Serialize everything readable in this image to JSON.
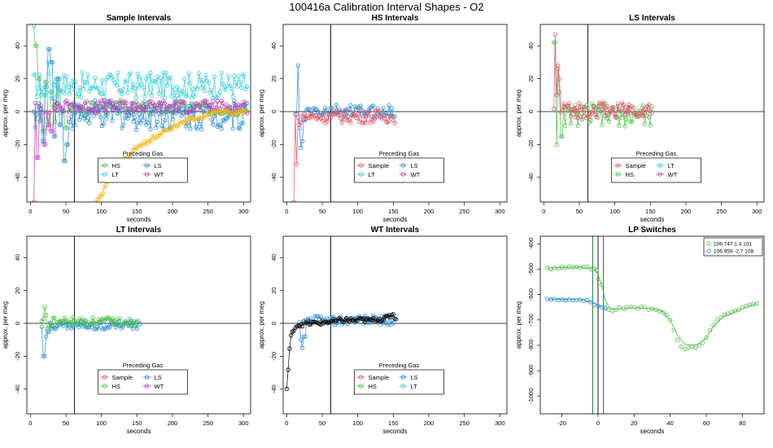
{
  "page_title": "100416a   Calibration Interval Shapes - O2",
  "colors": {
    "Sample": "#e8566b",
    "HS": "#4cbf4c",
    "LS": "#2a8fd4",
    "LT": "#3ccfd8",
    "WT": "#c040c0",
    "black": "#000000",
    "darkgreen": "#007a33"
  },
  "chart_data": [
    {
      "id": "sample",
      "type": "scatter",
      "title": "Sample Intervals",
      "xlabel": "seconds",
      "ylabel": "approx. per meg",
      "xlim": [
        -5,
        310
      ],
      "ylim": [
        -55,
        53
      ],
      "xticks": [
        0,
        50,
        100,
        150,
        200,
        250,
        300
      ],
      "yticks": [
        -40,
        -20,
        0,
        20,
        40
      ],
      "hline": 0,
      "vline": 62,
      "legend": {
        "title": "Preceding Gas",
        "position": "bottom-center",
        "entries": [
          "HS",
          "LS",
          "LT",
          "WT"
        ]
      },
      "series": [
        {
          "name": "HS",
          "xmax": 305,
          "level": 2,
          "noise": 4,
          "spike": [
            [
              5,
              52
            ],
            [
              8,
              40
            ],
            [
              12,
              20
            ],
            [
              15,
              -5
            ],
            [
              18,
              -12
            ],
            [
              22,
              18
            ],
            [
              26,
              -8
            ],
            [
              30,
              12
            ],
            [
              35,
              -6
            ],
            [
              40,
              20
            ],
            [
              45,
              0
            ],
            [
              50,
              -10
            ]
          ]
        },
        {
          "name": "LS",
          "xmax": 305,
          "level": -2,
          "noise": 9,
          "spike": [
            [
              18,
              -18
            ],
            [
              22,
              15
            ],
            [
              26,
              38
            ],
            [
              30,
              30
            ],
            [
              34,
              -15
            ],
            [
              38,
              20
            ],
            [
              42,
              -8
            ],
            [
              48,
              -30
            ],
            [
              52,
              -20
            ]
          ]
        },
        {
          "name": "LT",
          "xmax": 305,
          "level": 16,
          "noise": 8,
          "spike": [
            [
              20,
              10
            ],
            [
              25,
              30
            ],
            [
              30,
              8
            ],
            [
              35,
              18
            ],
            [
              45,
              12
            ]
          ]
        },
        {
          "name": "WT",
          "xmax": 305,
          "level": 3,
          "noise": 4,
          "spike": [
            [
              5,
              -55
            ],
            [
              10,
              -28
            ],
            [
              20,
              -20
            ],
            [
              25,
              -10
            ],
            [
              30,
              -12
            ],
            [
              35,
              6
            ]
          ]
        },
        {
          "name": "orange",
          "color": "#f0b820",
          "xmax": 305,
          "level": 0,
          "noise": 3,
          "curve": [
            [
              92,
              -55
            ],
            [
              100,
              -50
            ],
            [
              110,
              -42
            ],
            [
              120,
              -38
            ],
            [
              130,
              -30
            ],
            [
              140,
              -26
            ],
            [
              150,
              -22
            ],
            [
              160,
              -20
            ],
            [
              170,
              -17
            ],
            [
              180,
              -15
            ],
            [
              190,
              -12
            ],
            [
              200,
              -10
            ],
            [
              210,
              -7
            ],
            [
              220,
              -6
            ],
            [
              230,
              -4
            ],
            [
              240,
              -3
            ],
            [
              250,
              -2
            ],
            [
              260,
              -1
            ],
            [
              270,
              0
            ],
            [
              280,
              0
            ],
            [
              290,
              -1
            ],
            [
              300,
              0
            ]
          ]
        }
      ]
    },
    {
      "id": "hs",
      "type": "scatter",
      "title": "HS Intervals",
      "xlabel": "seconds",
      "ylabel": "approx. per meg",
      "xlim": [
        -5,
        310
      ],
      "ylim": [
        -55,
        53
      ],
      "xticks": [
        0,
        50,
        100,
        150,
        200,
        250,
        300
      ],
      "yticks": [
        -40,
        -20,
        0,
        20,
        40
      ],
      "hline": 0,
      "vline": 62,
      "legend": {
        "title": "Preceding Gas",
        "position": "bottom-center",
        "entries": [
          "Sample",
          "LS",
          "LT",
          "WT"
        ]
      },
      "series": [
        {
          "name": "LS",
          "xmin": 14,
          "xmax": 152,
          "level": 0,
          "noise": 4,
          "spike": [
            [
              16,
              28
            ],
            [
              18,
              -10
            ],
            [
              20,
              -22
            ],
            [
              22,
              -18
            ],
            [
              25,
              -5
            ]
          ]
        },
        {
          "name": "Sample",
          "xmin": 10,
          "xmax": 152,
          "level": -3,
          "noise": 4,
          "spike": [
            [
              10,
              -55
            ],
            [
              14,
              -32
            ],
            [
              18,
              -8
            ]
          ]
        }
      ]
    },
    {
      "id": "ls",
      "type": "scatter",
      "title": "LS Intervals",
      "xlabel": "seconds",
      "ylabel": "approx. per meg",
      "xlim": [
        -5,
        310
      ],
      "ylim": [
        -55,
        53
      ],
      "xticks": [
        0,
        50,
        100,
        150,
        200,
        250,
        300
      ],
      "yticks": [
        -40,
        -20,
        0,
        20,
        40
      ],
      "hline": 0,
      "vline": 62,
      "legend": {
        "title": "Preceding Gas",
        "position": "bottom-center",
        "entries": [
          "Sample",
          "LT",
          "HS",
          "WT"
        ]
      },
      "series": [
        {
          "name": "HS",
          "xmin": 14,
          "xmax": 152,
          "level": -2,
          "noise": 7,
          "spike": [
            [
              15,
              42
            ],
            [
              18,
              -20
            ],
            [
              20,
              26
            ],
            [
              22,
              12
            ],
            [
              25,
              -15
            ]
          ]
        },
        {
          "name": "Sample",
          "xmin": 14,
          "xmax": 152,
          "level": 1,
          "noise": 5,
          "spike": [
            [
              16,
              47
            ],
            [
              18,
              10
            ],
            [
              20,
              28
            ],
            [
              22,
              20
            ]
          ]
        }
      ]
    },
    {
      "id": "lt",
      "type": "scatter",
      "title": "LT Intervals",
      "xlabel": "seconds",
      "ylabel": "approx. per meg",
      "xlim": [
        -5,
        310
      ],
      "ylim": [
        -55,
        53
      ],
      "xticks": [
        0,
        50,
        100,
        150,
        200,
        250,
        300
      ],
      "yticks": [
        -40,
        -20,
        0,
        20,
        40
      ],
      "hline": 0,
      "vline": 62,
      "legend": {
        "title": "Preceding Gas",
        "position": "bottom-center",
        "entries": [
          "Sample",
          "LS",
          "HS",
          "WT"
        ]
      },
      "series": [
        {
          "name": "LS",
          "xmin": 16,
          "xmax": 155,
          "level": -1,
          "noise": 2.5,
          "spike": [
            [
              18,
              -20
            ],
            [
              20,
              -20
            ],
            [
              22,
              -8
            ],
            [
              25,
              -5
            ]
          ]
        },
        {
          "name": "HS",
          "xmin": 16,
          "xmax": 150,
          "level": 1,
          "noise": 2.5,
          "spike": [
            [
              20,
              10
            ],
            [
              22,
              5
            ],
            [
              25,
              -3
            ]
          ]
        }
      ]
    },
    {
      "id": "wt",
      "type": "scatter",
      "title": "WT Intervals",
      "xlabel": "seconds",
      "ylabel": "approx. per meg",
      "xlim": [
        -5,
        310
      ],
      "ylim": [
        -55,
        53
      ],
      "xticks": [
        0,
        50,
        100,
        150,
        200,
        250,
        300
      ],
      "yticks": [
        -40,
        -20,
        0,
        20,
        40
      ],
      "hline": 0,
      "vline": 62,
      "legend": {
        "title": "Preceding Gas",
        "position": "bottom-center",
        "entries": [
          "Sample",
          "LS",
          "HS",
          "LT"
        ]
      },
      "series": [
        {
          "name": "LS",
          "xmin": 18,
          "xmax": 150,
          "level": 2,
          "noise": 3,
          "spike": [
            [
              20,
              -10
            ],
            [
              22,
              -15
            ],
            [
              25,
              -8
            ]
          ]
        },
        {
          "name": "black",
          "color": "#000000",
          "xmin": 0,
          "xmax": 155,
          "level": 1,
          "noise": 3,
          "line": true,
          "curve": [
            [
              0,
              -40
            ],
            [
              5,
              -10
            ],
            [
              10,
              -3
            ],
            [
              15,
              -1
            ],
            [
              25,
              0
            ],
            [
              40,
              0
            ],
            [
              60,
              1
            ],
            [
              80,
              2
            ],
            [
              100,
              2
            ],
            [
              120,
              2
            ],
            [
              140,
              3
            ],
            [
              150,
              6
            ],
            [
              155,
              1
            ]
          ]
        }
      ]
    },
    {
      "id": "lp",
      "type": "scatter",
      "title": "LP Switches",
      "xlabel": "seconds",
      "ylabel": "approx. per meg",
      "xlim": [
        -32,
        92
      ],
      "ylim": [
        -1070,
        -370
      ],
      "xticks": [
        -20,
        0,
        20,
        40,
        60,
        80
      ],
      "yticks": [
        -1000,
        -900,
        -800,
        -700,
        -600,
        -500,
        -400
      ],
      "vline": 0,
      "vlines_green": [
        -3,
        3
      ],
      "legend": {
        "position": "top-right",
        "entries": [
          {
            "label": "106.747 1.4 101",
            "color": "HS"
          },
          {
            "label": "106.959 -2.7 108",
            "color": "LS"
          }
        ]
      },
      "series": [
        {
          "name": "HS",
          "points": [
            [
              -28,
              -495
            ],
            [
              -26,
              -500
            ],
            [
              -24,
              -495
            ],
            [
              -22,
              -498
            ],
            [
              -20,
              -492
            ],
            [
              -18,
              -495
            ],
            [
              -16,
              -490
            ],
            [
              -14,
              -492
            ],
            [
              -12,
              -490
            ],
            [
              -10,
              -495
            ],
            [
              -8,
              -492
            ],
            [
              -6,
              -490
            ],
            [
              -4,
              -500
            ],
            [
              -2,
              -498
            ],
            [
              -1,
              -505
            ],
            [
              0,
              -540
            ],
            [
              2,
              -560
            ],
            [
              4,
              -650
            ],
            [
              6,
              -660
            ],
            [
              8,
              -665
            ],
            [
              10,
              -660
            ],
            [
              12,
              -650
            ],
            [
              14,
              -655
            ],
            [
              16,
              -650
            ],
            [
              18,
              -648
            ],
            [
              20,
              -650
            ],
            [
              22,
              -655
            ],
            [
              24,
              -648
            ],
            [
              26,
              -650
            ],
            [
              28,
              -660
            ],
            [
              30,
              -655
            ],
            [
              32,
              -660
            ],
            [
              34,
              -665
            ],
            [
              36,
              -670
            ],
            [
              38,
              -680
            ],
            [
              40,
              -700
            ],
            [
              42,
              -740
            ],
            [
              44,
              -780
            ],
            [
              46,
              -805
            ],
            [
              48,
              -815
            ],
            [
              50,
              -810
            ],
            [
              52,
              -805
            ],
            [
              54,
              -810
            ],
            [
              56,
              -800
            ],
            [
              58,
              -790
            ],
            [
              60,
              -770
            ],
            [
              62,
              -740
            ],
            [
              64,
              -720
            ],
            [
              66,
              -700
            ],
            [
              68,
              -690
            ],
            [
              70,
              -680
            ],
            [
              72,
              -675
            ],
            [
              74,
              -670
            ],
            [
              76,
              -665
            ],
            [
              78,
              -660
            ],
            [
              80,
              -650
            ],
            [
              82,
              -645
            ],
            [
              84,
              -640
            ],
            [
              86,
              -638
            ],
            [
              88,
              -635
            ]
          ],
          "fit": [
            [
              -28,
              -495
            ],
            [
              -10,
              -492
            ],
            [
              -2,
              -498
            ],
            [
              0,
              -520
            ],
            [
              2,
              -560
            ],
            [
              4,
              -620
            ],
            [
              6,
              -650
            ],
            [
              10,
              -658
            ],
            [
              20,
              -652
            ],
            [
              30,
              -655
            ],
            [
              36,
              -668
            ],
            [
              40,
              -700
            ],
            [
              44,
              -760
            ],
            [
              48,
              -795
            ],
            [
              52,
              -800
            ],
            [
              56,
              -795
            ],
            [
              60,
              -770
            ],
            [
              64,
              -725
            ],
            [
              70,
              -685
            ],
            [
              80,
              -655
            ],
            [
              88,
              -635
            ]
          ]
        },
        {
          "name": "LS",
          "points": [
            [
              -28,
              -618
            ],
            [
              -26,
              -620
            ],
            [
              -24,
              -618
            ],
            [
              -22,
              -622
            ],
            [
              -20,
              -620
            ],
            [
              -18,
              -622
            ],
            [
              -16,
              -620
            ],
            [
              -14,
              -622
            ],
            [
              -12,
              -621
            ],
            [
              -10,
              -620
            ],
            [
              -8,
              -625
            ],
            [
              -6,
              -622
            ],
            [
              -4,
              -630
            ],
            [
              -2,
              -640
            ],
            [
              0,
              -645
            ],
            [
              2,
              -650
            ],
            [
              4,
              -655
            ]
          ],
          "fit": [
            [
              -28,
              -618
            ],
            [
              -10,
              -620
            ],
            [
              -4,
              -628
            ],
            [
              0,
              -642
            ],
            [
              4,
              -655
            ]
          ]
        }
      ]
    }
  ]
}
